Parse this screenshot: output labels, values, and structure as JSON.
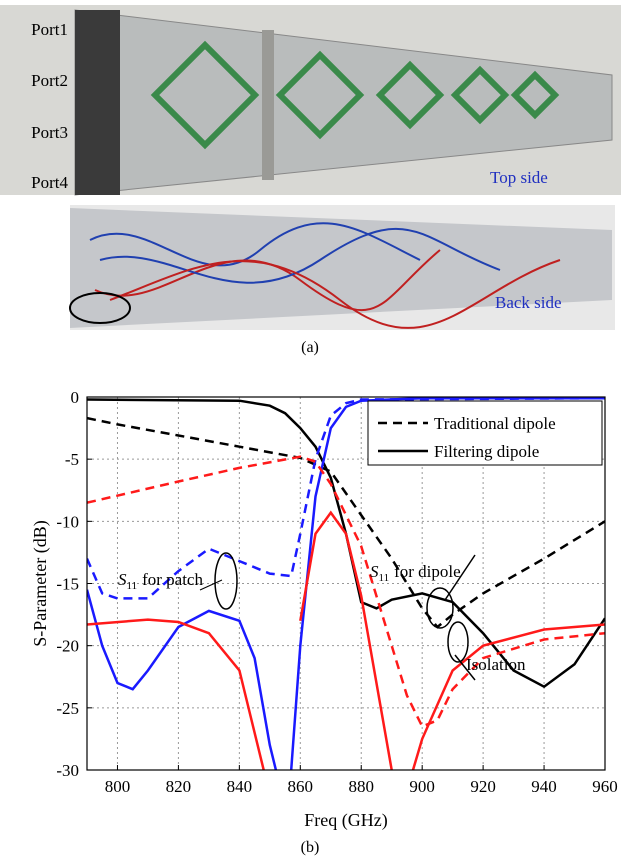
{
  "figure_a": {
    "ports": [
      "Port1",
      "Port2",
      "Port3",
      "Port4"
    ],
    "top_side": "Top side",
    "back_side": "Back side",
    "caption": "(a)"
  },
  "chart_data": {
    "type": "line",
    "xlabel": "Freq (GHz)",
    "ylabel": "S-Parameter (dB)",
    "xlim": [
      790,
      960
    ],
    "xticks": [
      800,
      820,
      840,
      860,
      880,
      900,
      920,
      940,
      960
    ],
    "ylim": [
      -30,
      0
    ],
    "yticks": [
      0,
      -5,
      -10,
      -15,
      -20,
      -25,
      -30
    ],
    "grid": true,
    "legend": [
      {
        "label": "Traditional dipole",
        "dash": true
      },
      {
        "label": "Filtering dipole",
        "dash": false
      }
    ],
    "series": [
      {
        "color": "#000000",
        "dash": true,
        "x": [
          790,
          800,
          820,
          840,
          860,
          870,
          880,
          890,
          900,
          905,
          910,
          920,
          940,
          960
        ],
        "values": [
          -1.7,
          -2.2,
          -3.1,
          -4,
          -4.9,
          -6,
          -9.5,
          -13,
          -17,
          -18.5,
          -17.5,
          -15.8,
          -13,
          -10
        ]
      },
      {
        "color": "#000000",
        "dash": false,
        "x": [
          790,
          840,
          850,
          855,
          860,
          865,
          870,
          875,
          880,
          885,
          890,
          900,
          910,
          920,
          930,
          940,
          950,
          960
        ],
        "values": [
          -0.2,
          -0.3,
          -0.7,
          -1.3,
          -2.5,
          -4,
          -6.5,
          -11,
          -16.5,
          -17,
          -16.3,
          -15.8,
          -16.5,
          -19,
          -22,
          -23.3,
          -21.5,
          -17.8
        ]
      },
      {
        "color": "#1a1aff",
        "dash": true,
        "x": [
          790,
          795,
          800,
          810,
          820,
          830,
          840,
          850,
          857,
          860,
          865,
          870,
          875,
          880,
          960
        ],
        "values": [
          -13,
          -15.8,
          -16.2,
          -16.2,
          -14,
          -12.2,
          -13.2,
          -14.2,
          -14.4,
          -11,
          -5,
          -1.5,
          -0.5,
          -0.2,
          -0.1
        ]
      },
      {
        "color": "#1a1aff",
        "dash": false,
        "x": [
          790,
          795,
          800,
          805,
          810,
          820,
          830,
          840,
          845,
          850,
          852,
          null,
          857,
          860,
          865,
          870,
          875,
          880,
          900,
          960
        ],
        "values": [
          -15.5,
          -20,
          -23,
          -23.5,
          -22,
          -18.5,
          -17.2,
          -18,
          -21,
          -28,
          -30,
          null,
          -30,
          -20,
          -8,
          -2.5,
          -0.8,
          -0.3,
          -0.1,
          -0.1
        ]
      },
      {
        "color": "#ff1a1a",
        "dash": true,
        "x": [
          790,
          820,
          840,
          860,
          865,
          870,
          880,
          890,
          895,
          900,
          905,
          910,
          920,
          940,
          960
        ],
        "values": [
          -8.5,
          -6.8,
          -5.7,
          -4.8,
          -5.2,
          -7,
          -12,
          -20,
          -24,
          -26.5,
          -26,
          -23.5,
          -21,
          -19.5,
          -19
        ]
      },
      {
        "color": "#ff1a1a",
        "dash": false,
        "x": [
          790,
          810,
          820,
          830,
          840,
          848,
          null,
          860,
          865,
          870,
          875,
          880,
          890,
          null,
          897,
          900,
          910,
          920,
          940,
          960
        ],
        "values": [
          -18.3,
          -17.9,
          -18.1,
          -19,
          -22,
          -30,
          null,
          -18,
          -11,
          -9.3,
          -11,
          -16,
          -30,
          null,
          -30,
          -27.5,
          -22,
          -20,
          -18.7,
          -18.3
        ]
      }
    ],
    "annotations": [
      {
        "symbol": "S",
        "subscript": "11",
        "text": "for patch"
      },
      {
        "symbol": "S",
        "subscript": "11",
        "text": "for dipole"
      },
      {
        "symbol": "",
        "subscript": "",
        "text": "Isolation"
      }
    ]
  },
  "caption_b": "(b)"
}
